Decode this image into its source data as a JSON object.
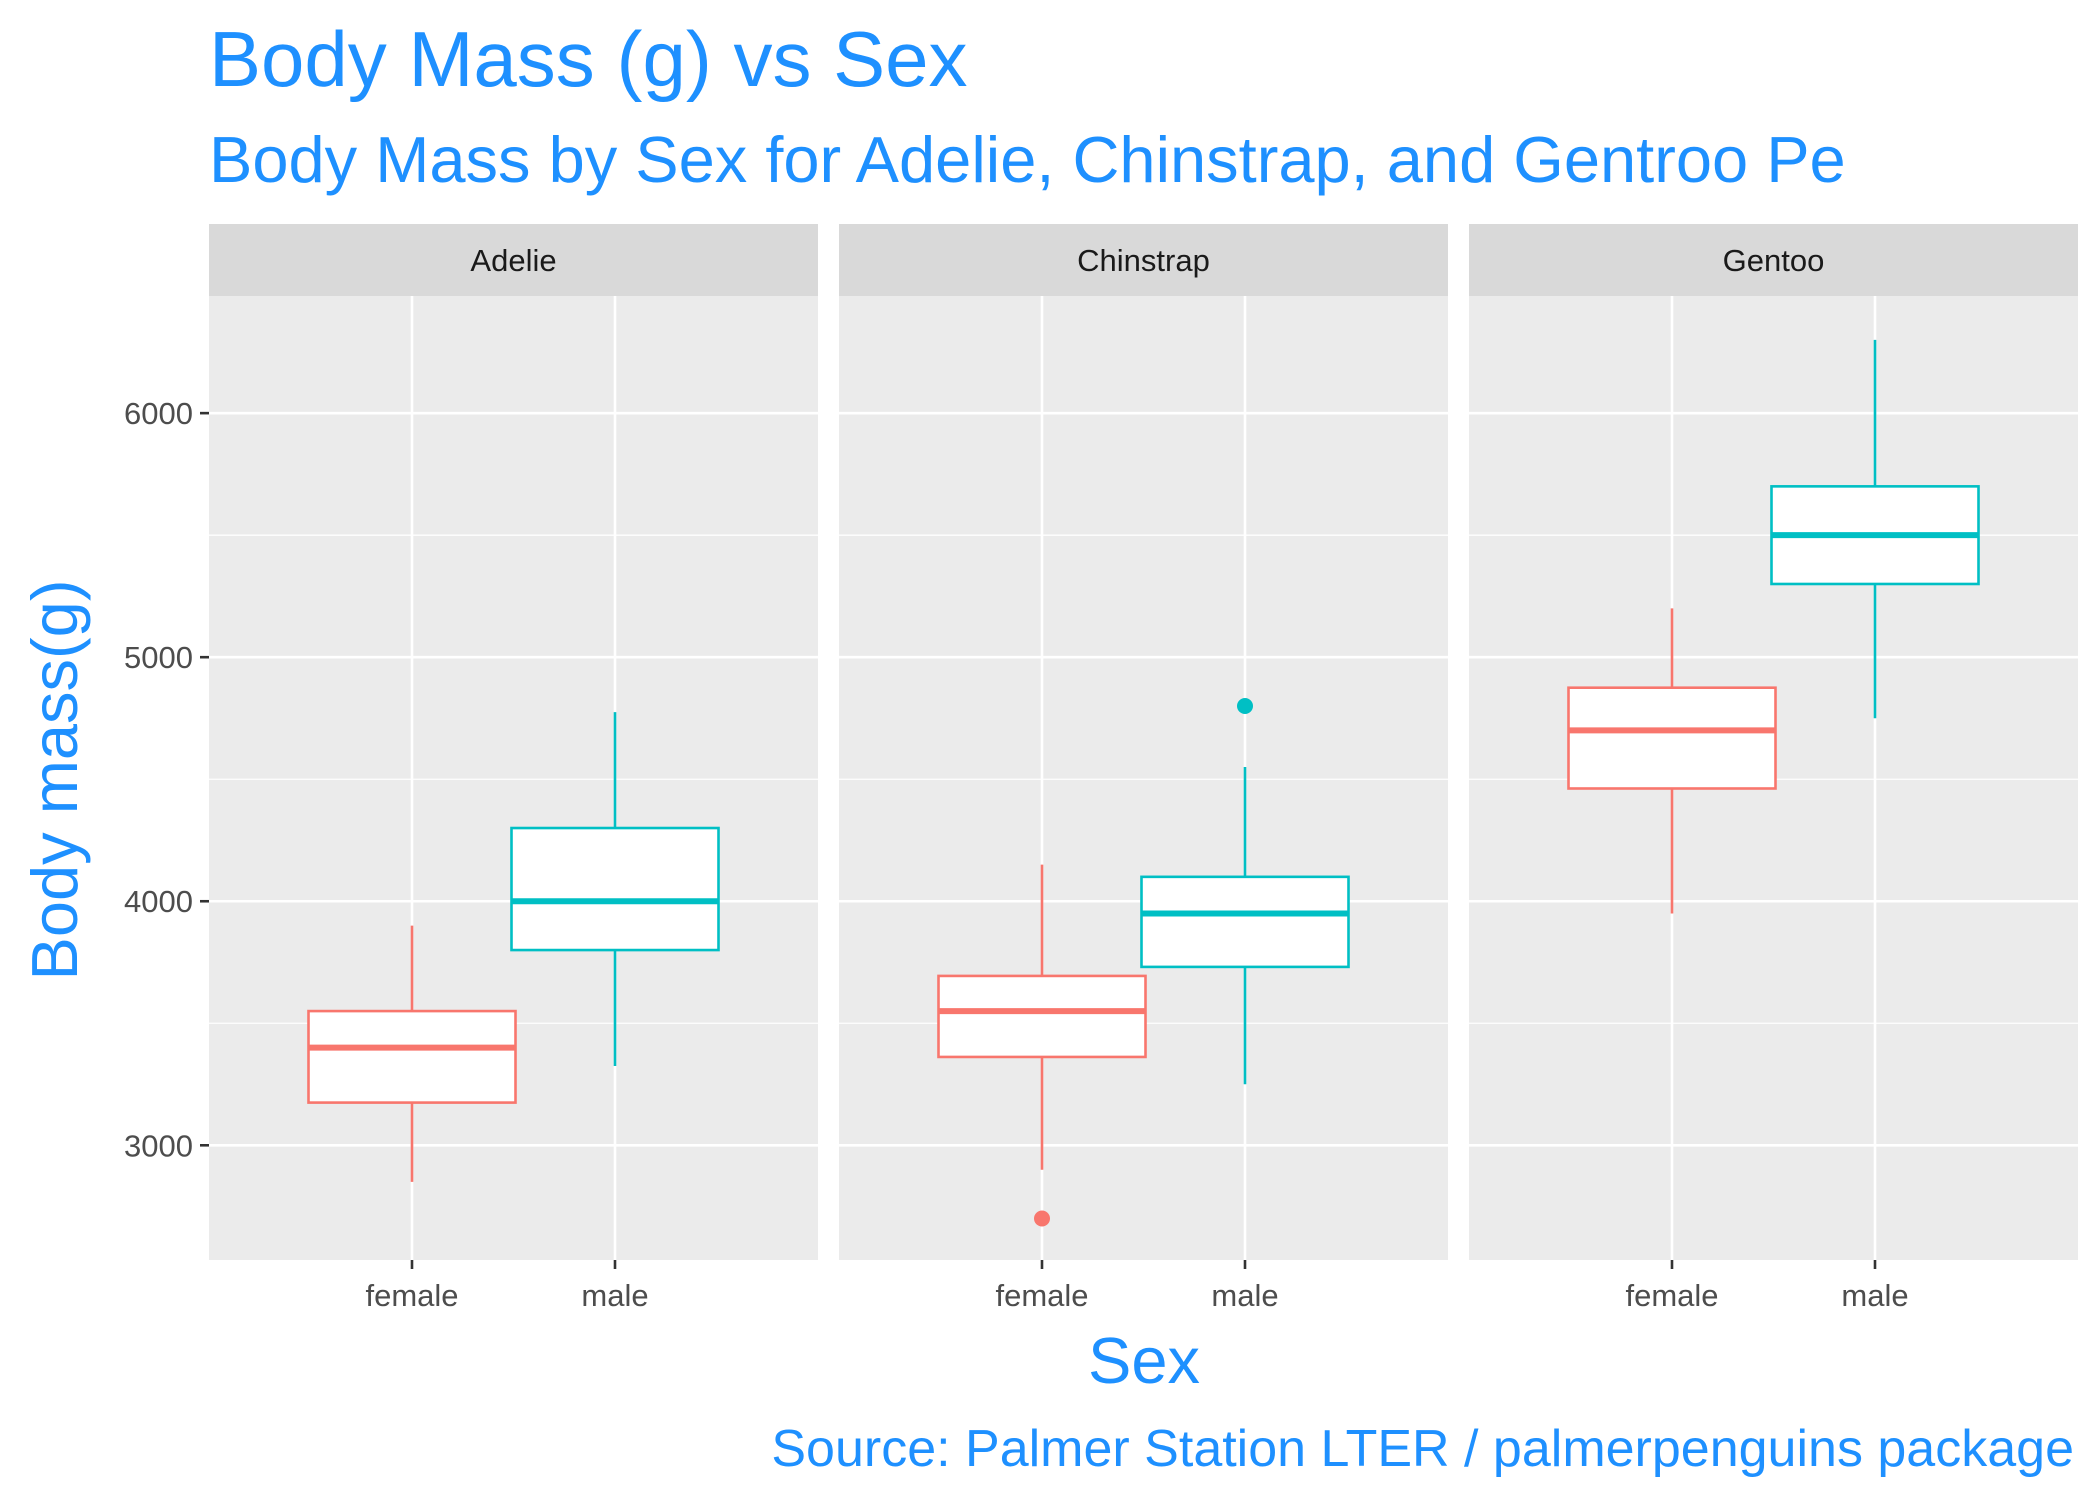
{
  "chart_data": {
    "type": "boxplot",
    "title": "Body Mass (g) vs Sex",
    "subtitle": "Body Mass by Sex for Adelie, Chinstrap, and Gentroo Pe",
    "caption": "Source: Palmer Station LTER / palmerpenguins package",
    "xlabel": "Sex",
    "ylabel": "Body mass(g)",
    "ylim": [
      2530,
      6480
    ],
    "yticks": [
      3000,
      4000,
      5000,
      6000
    ],
    "ytick_labels": [
      "3000",
      "4000",
      "5000",
      "6000"
    ],
    "categories": [
      "female",
      "male"
    ],
    "colors": {
      "female": "#F8766D",
      "male": "#00BFC4"
    },
    "legend": "none",
    "grid": true,
    "facets": [
      {
        "name": "Adelie",
        "boxes": [
          {
            "category": "female",
            "min": 2850,
            "q1": 3175,
            "median": 3400,
            "q3": 3550,
            "max": 3900,
            "outliers": []
          },
          {
            "category": "male",
            "min": 3325,
            "q1": 3800,
            "median": 4000,
            "q3": 4300,
            "max": 4775,
            "outliers": []
          }
        ]
      },
      {
        "name": "Chinstrap",
        "boxes": [
          {
            "category": "female",
            "min": 2900,
            "q1": 3362,
            "median": 3550,
            "q3": 3694,
            "max": 4150,
            "outliers": [
              2700
            ]
          },
          {
            "category": "male",
            "min": 3250,
            "q1": 3731,
            "median": 3950,
            "q3": 4100,
            "max": 4550,
            "outliers": [
              4800
            ]
          }
        ]
      },
      {
        "name": "Gentoo",
        "boxes": [
          {
            "category": "female",
            "min": 3950,
            "q1": 4462,
            "median": 4700,
            "q3": 4875,
            "max": 5200,
            "outliers": []
          },
          {
            "category": "male",
            "min": 4750,
            "q1": 5300,
            "median": 5500,
            "q3": 5700,
            "max": 6300,
            "outliers": []
          }
        ]
      }
    ]
  }
}
